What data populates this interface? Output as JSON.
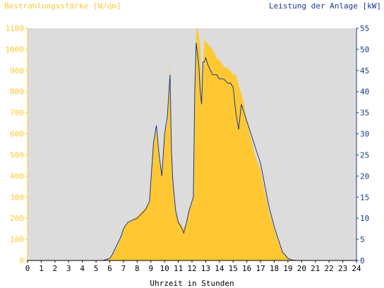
{
  "chart_data": {
    "type": "area",
    "title_left": "Bestrahlungsstärke [W/qm]",
    "title_right": "Leistung der Anlage [kW]",
    "xlabel": "Uhrzeit in Stunden",
    "xlim": [
      0,
      24
    ],
    "ylim_left": [
      0,
      1100
    ],
    "ylim_right": [
      0,
      55
    ],
    "x_ticks": [
      "0",
      "1",
      "2",
      "3",
      "4",
      "5",
      "6",
      "7",
      "8",
      "9",
      "10",
      "11",
      "12",
      "13",
      "14",
      "15",
      "16",
      "17",
      "18",
      "19",
      "20",
      "21",
      "22",
      "23",
      "24"
    ],
    "y_left_ticks": [
      "0",
      "100",
      "200",
      "300",
      "400",
      "500",
      "600",
      "700",
      "800",
      "900",
      "1000",
      "1100"
    ],
    "y_right_ticks": [
      "0",
      "5",
      "10",
      "15",
      "20",
      "25",
      "30",
      "35",
      "40",
      "45",
      "50",
      "55"
    ],
    "grid": false,
    "colors": {
      "plot_bg": "#dcdcdc",
      "irradiance": "#ffc833",
      "power": "#1a3a8c"
    },
    "series": [
      {
        "name": "Bestrahlungsstärke [W/qm]",
        "axis": "left",
        "style": "filled-area",
        "x": [
          0,
          5.5,
          6.0,
          6.2,
          6.5,
          6.8,
          7.0,
          7.3,
          7.6,
          8.0,
          8.3,
          8.6,
          8.9,
          9.0,
          9.2,
          9.4,
          9.6,
          9.8,
          10.0,
          10.2,
          10.4,
          10.5,
          10.6,
          10.8,
          11.0,
          11.2,
          11.4,
          11.6,
          11.8,
          12.0,
          12.1,
          12.2,
          12.3,
          12.4,
          12.5,
          12.6,
          12.7,
          12.8,
          12.9,
          13.0,
          13.2,
          13.5,
          13.8,
          14.0,
          14.3,
          14.6,
          14.8,
          15.0,
          15.2,
          15.4,
          15.6,
          15.8,
          16.0,
          16.3,
          16.6,
          17.0,
          17.3,
          17.6,
          18.0,
          18.3,
          18.6,
          19.0,
          19.3,
          19.6,
          19.8,
          20.0,
          24
        ],
        "y": [
          0,
          0,
          10,
          25,
          60,
          100,
          150,
          180,
          190,
          210,
          230,
          250,
          280,
          380,
          560,
          620,
          480,
          390,
          600,
          650,
          940,
          520,
          380,
          240,
          190,
          170,
          150,
          180,
          240,
          270,
          300,
          800,
          1080,
          1100,
          1060,
          1020,
          770,
          900,
          1040,
          1040,
          1020,
          1000,
          960,
          950,
          920,
          910,
          900,
          880,
          880,
          830,
          790,
          740,
          660,
          580,
          500,
          430,
          330,
          240,
          150,
          90,
          40,
          10,
          2,
          0,
          0,
          0,
          0
        ]
      },
      {
        "name": "Leistung der Anlage [kW]",
        "axis": "right",
        "style": "line",
        "x": [
          0,
          5.5,
          6.0,
          6.2,
          6.5,
          6.8,
          7.0,
          7.3,
          7.6,
          8.0,
          8.3,
          8.6,
          8.9,
          9.0,
          9.2,
          9.4,
          9.6,
          9.8,
          10.0,
          10.2,
          10.4,
          10.5,
          10.6,
          10.8,
          11.0,
          11.2,
          11.4,
          11.6,
          11.8,
          12.0,
          12.1,
          12.2,
          12.3,
          12.4,
          12.5,
          12.6,
          12.7,
          12.8,
          12.9,
          13.0,
          13.2,
          13.5,
          13.8,
          14.0,
          14.3,
          14.6,
          14.8,
          15.0,
          15.2,
          15.4,
          15.6,
          15.8,
          16.0,
          16.3,
          16.6,
          17.0,
          17.3,
          17.6,
          18.0,
          18.3,
          18.6,
          19.0,
          19.3,
          19.6,
          19.8,
          20.0,
          24
        ],
        "y": [
          0,
          0,
          0.5,
          1.5,
          3.5,
          5.5,
          7.5,
          9,
          9.5,
          10,
          11,
          12,
          14,
          19,
          28,
          32,
          25,
          20,
          30,
          34,
          44,
          26,
          19,
          12,
          9,
          8,
          6.5,
          9,
          12,
          14,
          15,
          40,
          51.5,
          49,
          46,
          40,
          37,
          47,
          47,
          48,
          46,
          44,
          44,
          43,
          43,
          42,
          42,
          41,
          35,
          31,
          37,
          35,
          33,
          30,
          27,
          23,
          18,
          13,
          8,
          5,
          2,
          0.5,
          0.1,
          0,
          0,
          0,
          0
        ]
      }
    ]
  }
}
